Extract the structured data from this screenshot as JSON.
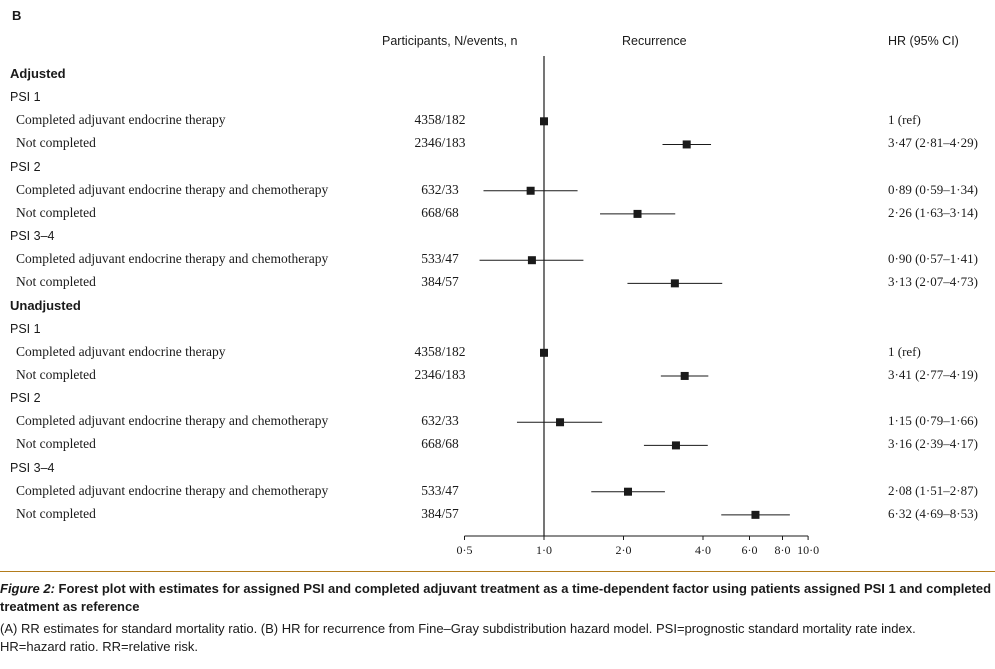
{
  "panel_label": "B",
  "headers": {
    "participants": "Participants, N/events, n",
    "plot": "Recurrence",
    "hr": "HR (95% CI)"
  },
  "rows": [
    {
      "kind": "section",
      "label": "Adjusted"
    },
    {
      "kind": "psi",
      "label": "PSI 1"
    },
    {
      "kind": "item",
      "label": "Completed adjuvant endocrine therapy",
      "n_events": "4358/182",
      "hr_text": "1 (ref)"
    },
    {
      "kind": "item",
      "label": "Not completed",
      "n_events": "2346/183",
      "hr_text": "3·47 (2·81–4·29)"
    },
    {
      "kind": "psi",
      "label": "PSI 2"
    },
    {
      "kind": "item",
      "label": "Completed adjuvant endocrine therapy and chemotherapy",
      "n_events": "632/33",
      "hr_text": "0·89 (0·59–1·34)"
    },
    {
      "kind": "item",
      "label": "Not completed",
      "n_events": "668/68",
      "hr_text": "2·26 (1·63–3·14)"
    },
    {
      "kind": "psi",
      "label": "PSI 3–4"
    },
    {
      "kind": "item",
      "label": "Completed adjuvant endocrine therapy and chemotherapy",
      "n_events": "533/47",
      "hr_text": "0·90 (0·57–1·41)"
    },
    {
      "kind": "item",
      "label": "Not completed",
      "n_events": "384/57",
      "hr_text": "3·13 (2·07–4·73)"
    },
    {
      "kind": "section",
      "label": "Unadjusted"
    },
    {
      "kind": "psi",
      "label": "PSI 1"
    },
    {
      "kind": "item",
      "label": "Completed adjuvant endocrine therapy",
      "n_events": "4358/182",
      "hr_text": "1 (ref)"
    },
    {
      "kind": "item",
      "label": "Not completed",
      "n_events": "2346/183",
      "hr_text": "3·41 (2·77–4·19)"
    },
    {
      "kind": "psi",
      "label": "PSI 2"
    },
    {
      "kind": "item",
      "label": "Completed adjuvant endocrine therapy and chemotherapy",
      "n_events": "632/33",
      "hr_text": "1·15 (0·79–1·66)"
    },
    {
      "kind": "item",
      "label": "Not completed",
      "n_events": "668/68",
      "hr_text": "3·16 (2·39–4·17)"
    },
    {
      "kind": "psi",
      "label": "PSI 3–4"
    },
    {
      "kind": "item",
      "label": "Completed adjuvant endocrine therapy and chemotherapy",
      "n_events": "533/47",
      "hr_text": "2·08 (1·51–2·87)"
    },
    {
      "kind": "item",
      "label": "Not completed",
      "n_events": "384/57",
      "hr_text": "6·32 (4·69–8·53)"
    }
  ],
  "chart_data": {
    "type": "scatter",
    "subtype": "forest",
    "title": "Recurrence",
    "x_scale": "log",
    "reference_line": 1,
    "x_ticks": [
      0.5,
      1,
      2,
      4,
      6,
      8,
      10
    ],
    "x_tick_labels": [
      "0·5",
      "1·0",
      "2·0",
      "4·0",
      "6·0",
      "8·0",
      "10·0"
    ],
    "xlim": [
      0.5,
      10
    ],
    "points": [
      {
        "group": "Adjusted",
        "psi": "PSI 1",
        "label": "Completed adjuvant endocrine therapy",
        "hr": 1.0,
        "lo": 1.0,
        "hi": 1.0
      },
      {
        "group": "Adjusted",
        "psi": "PSI 1",
        "label": "Not completed",
        "hr": 3.47,
        "lo": 2.81,
        "hi": 4.29
      },
      {
        "group": "Adjusted",
        "psi": "PSI 2",
        "label": "Completed adjuvant endocrine therapy and chemotherapy",
        "hr": 0.89,
        "lo": 0.59,
        "hi": 1.34
      },
      {
        "group": "Adjusted",
        "psi": "PSI 2",
        "label": "Not completed",
        "hr": 2.26,
        "lo": 1.63,
        "hi": 3.14
      },
      {
        "group": "Adjusted",
        "psi": "PSI 3–4",
        "label": "Completed adjuvant endocrine therapy and chemotherapy",
        "hr": 0.9,
        "lo": 0.57,
        "hi": 1.41
      },
      {
        "group": "Adjusted",
        "psi": "PSI 3–4",
        "label": "Not completed",
        "hr": 3.13,
        "lo": 2.07,
        "hi": 4.73
      },
      {
        "group": "Unadjusted",
        "psi": "PSI 1",
        "label": "Completed adjuvant endocrine therapy",
        "hr": 1.0,
        "lo": 1.0,
        "hi": 1.0
      },
      {
        "group": "Unadjusted",
        "psi": "PSI 1",
        "label": "Not completed",
        "hr": 3.41,
        "lo": 2.77,
        "hi": 4.19
      },
      {
        "group": "Unadjusted",
        "psi": "PSI 2",
        "label": "Completed adjuvant endocrine therapy and chemotherapy",
        "hr": 1.15,
        "lo": 0.79,
        "hi": 1.66
      },
      {
        "group": "Unadjusted",
        "psi": "PSI 2",
        "label": "Not completed",
        "hr": 3.16,
        "lo": 2.39,
        "hi": 4.17
      },
      {
        "group": "Unadjusted",
        "psi": "PSI 3–4",
        "label": "Completed adjuvant endocrine therapy and chemotherapy",
        "hr": 2.08,
        "lo": 1.51,
        "hi": 2.87
      },
      {
        "group": "Unadjusted",
        "psi": "PSI 3–4",
        "label": "Not completed",
        "hr": 6.32,
        "lo": 4.69,
        "hi": 8.53
      }
    ]
  },
  "caption": {
    "label": "Figure 2:",
    "title": " Forest plot with estimates for assigned PSI and completed adjuvant treatment as a time-dependent factor using patients assigned PSI 1 and completed treatment as reference",
    "body": "(A) RR estimates for standard mortality ratio. (B) HR for recurrence from Fine–Gray subdistribution hazard model. PSI=prognostic standard mortality rate index. HR=hazard ratio. RR=relative risk."
  },
  "colors": {
    "marker": "#1a1a1a",
    "caption_rule": "#b37c1c"
  }
}
